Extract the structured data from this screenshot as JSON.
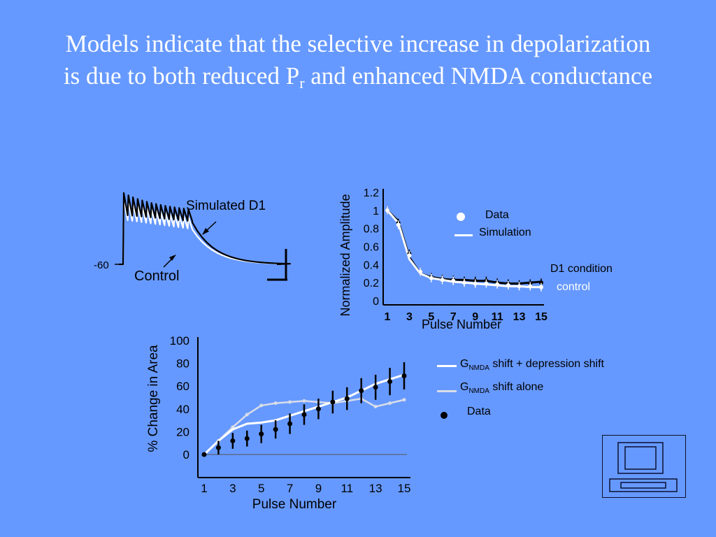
{
  "slide": {
    "title_part1": "Models indicate that the selective increase in depolarization is due to both reduced P",
    "title_sub": "r",
    "title_part2": " and enhanced NMDA conductance"
  },
  "trace_panel": {
    "label_simulated": "Simulated D1",
    "label_control": "Control",
    "label_baseline": "-60"
  },
  "colors": {
    "background": "#6699ff",
    "data_black": "#000000",
    "simulation_white": "#ffffff",
    "alone_light": "#d8dde8"
  },
  "chart_data": [
    {
      "type": "line",
      "ylabel": "Normalized Amplitude",
      "xlabel": "Pulse Number",
      "xticks": [
        "1",
        "3",
        "5",
        "7",
        "9",
        "11",
        "13",
        "15"
      ],
      "yticks": [
        "0",
        "0.2",
        "0.4",
        "0.6",
        "0.8",
        "1",
        "1.2"
      ],
      "xlim": [
        1,
        15
      ],
      "ylim": [
        0,
        1.2
      ],
      "x": [
        1,
        2,
        3,
        4,
        5,
        6,
        7,
        8,
        9,
        10,
        11,
        12,
        13,
        14,
        15
      ],
      "series": [
        {
          "name": "D1 condition",
          "style": "black",
          "data": [
            1.0,
            0.86,
            0.52,
            0.32,
            0.26,
            0.24,
            0.23,
            0.22,
            0.22,
            0.22,
            0.2,
            0.19,
            0.18,
            0.19,
            0.2
          ],
          "sim": [
            1.0,
            0.88,
            0.48,
            0.3,
            0.26,
            0.24,
            0.23,
            0.23,
            0.22,
            0.22,
            0.2,
            0.19,
            0.19,
            0.2,
            0.21
          ]
        },
        {
          "name": "control",
          "style": "white",
          "data": [
            1.0,
            0.84,
            0.5,
            0.32,
            0.25,
            0.23,
            0.22,
            0.2,
            0.19,
            0.19,
            0.18,
            0.17,
            0.16,
            0.16,
            0.15
          ],
          "sim": [
            1.0,
            0.86,
            0.46,
            0.3,
            0.25,
            0.23,
            0.21,
            0.2,
            0.19,
            0.18,
            0.17,
            0.16,
            0.16,
            0.15,
            0.15
          ]
        }
      ],
      "legend": {
        "data_label": "Data",
        "simulation_label": "Simulation",
        "d1_label": "D1 condition",
        "control_label": "control"
      }
    },
    {
      "type": "line",
      "ylabel": "% Change in Area",
      "xlabel": "Pulse Number",
      "xticks": [
        "1",
        "3",
        "5",
        "7",
        "9",
        "11",
        "13",
        "15"
      ],
      "yticks": [
        "0",
        "20",
        "40",
        "60",
        "80",
        "100"
      ],
      "xlim": [
        1,
        15
      ],
      "ylim": [
        0,
        100
      ],
      "x": [
        1,
        2,
        3,
        4,
        5,
        6,
        7,
        8,
        9,
        10,
        11,
        12,
        13,
        14,
        15
      ],
      "series": [
        {
          "name": "shift + depression shift",
          "values": [
            0,
            12,
            22,
            27,
            28,
            30,
            34,
            38,
            42,
            46,
            50,
            56,
            62,
            66,
            70
          ]
        },
        {
          "name": "shift alone",
          "values": [
            0,
            12,
            24,
            35,
            43,
            45,
            46,
            47,
            46,
            45,
            47,
            49,
            42,
            45,
            48
          ]
        },
        {
          "name": "Data",
          "values": [
            0,
            6,
            12,
            14,
            18,
            22,
            27,
            35,
            40,
            46,
            49,
            56,
            59,
            64,
            69
          ],
          "errors": [
            0,
            6,
            7,
            7,
            8,
            8,
            9,
            9,
            9,
            10,
            10,
            11,
            11,
            12,
            12
          ]
        }
      ],
      "legend": {
        "g": "G",
        "nmda": "NMDA",
        "shift_depression": " shift + depression shift",
        "shift_alone": " shift alone",
        "data_label": "Data"
      }
    }
  ]
}
